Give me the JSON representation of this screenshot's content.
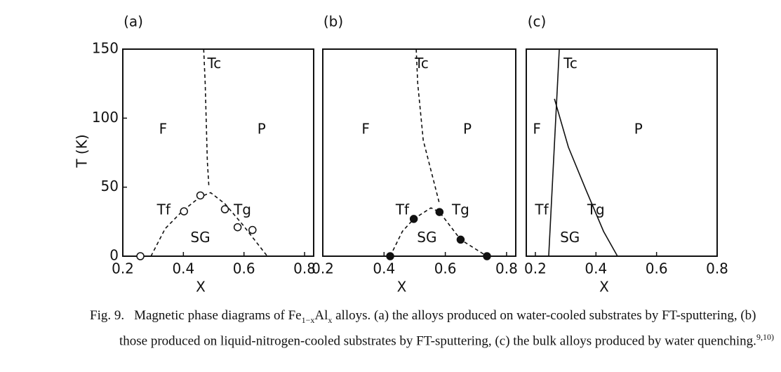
{
  "chart_data": [
    {
      "type": "line",
      "title": "(a)",
      "xlabel": "X",
      "ylabel": "T (K)",
      "xlim": [
        0.2,
        0.83
      ],
      "ylim": [
        0,
        150
      ],
      "xticks": [
        0.2,
        0.4,
        0.6,
        0.8
      ],
      "yticks": [
        0,
        50,
        100,
        150
      ],
      "series": [
        {
          "style": "dashed",
          "color": "#111",
          "x": [
            0.467,
            0.472,
            0.479,
            0.484
          ],
          "values": [
            150,
            125,
            69,
            51
          ]
        },
        {
          "style": "dashed",
          "color": "#111",
          "x": [
            0.293,
            0.34,
            0.398,
            0.456,
            0.49,
            0.537,
            0.595,
            0.677
          ],
          "values": [
            0,
            20,
            33,
            43,
            46,
            38,
            23,
            0
          ]
        },
        {
          "style": "none",
          "marker": "open",
          "color": "#111",
          "x": [
            0.258,
            0.402,
            0.456,
            0.537,
            0.579,
            0.628
          ],
          "values": [
            0,
            32.5,
            44,
            34,
            21,
            19
          ]
        }
      ],
      "annotations": [
        {
          "text": "F",
          "x": 0.333,
          "y": 91.5
        },
        {
          "text": "P",
          "x": 0.658,
          "y": 91.5
        },
        {
          "text": "SG",
          "x": 0.456,
          "y": 13
        },
        {
          "text": "Tc",
          "x": 0.502,
          "y": 139
        },
        {
          "text": "Tf",
          "x": 0.335,
          "y": 33
        },
        {
          "text": "Tg",
          "x": 0.595,
          "y": 33
        }
      ]
    },
    {
      "type": "line",
      "title": "(b)",
      "xlabel": "X",
      "xlim": [
        0.2,
        0.83
      ],
      "ylim": [
        0,
        150
      ],
      "xticks": [
        0.2,
        0.4,
        0.6,
        0.8
      ],
      "series": [
        {
          "style": "dashed",
          "color": "#111",
          "x": [
            0.505,
            0.51,
            0.528,
            0.581
          ],
          "values": [
            150,
            125,
            84,
            38
          ]
        },
        {
          "style": "dashed",
          "color": "#111",
          "x": [
            0.42,
            0.46,
            0.497,
            0.553,
            0.581,
            0.65,
            0.736
          ],
          "values": [
            0,
            18,
            27,
            35,
            32,
            12,
            0
          ]
        },
        {
          "style": "none",
          "marker": "filled",
          "color": "#111",
          "x": [
            0.42,
            0.497,
            0.581,
            0.65,
            0.736
          ],
          "values": [
            0,
            27,
            32,
            12,
            0
          ]
        }
      ],
      "annotations": [
        {
          "text": "F",
          "x": 0.34,
          "y": 91.5
        },
        {
          "text": "P",
          "x": 0.672,
          "y": 91.5
        },
        {
          "text": "SG",
          "x": 0.54,
          "y": 13
        },
        {
          "text": "Tc",
          "x": 0.523,
          "y": 139
        },
        {
          "text": "Tf",
          "x": 0.46,
          "y": 33
        },
        {
          "text": "Tg",
          "x": 0.65,
          "y": 33
        }
      ]
    },
    {
      "type": "line",
      "title": "(c)",
      "xlabel": "X",
      "xlim": [
        0.17,
        0.8
      ],
      "ylim": [
        0,
        150
      ],
      "xticks": [
        0.2,
        0.4,
        0.6,
        0.8
      ],
      "series": [
        {
          "style": "solid",
          "color": "#111",
          "x": [
            0.279,
            0.244
          ],
          "values": [
            150,
            0
          ]
        },
        {
          "style": "solid",
          "color": "#111",
          "x": [
            0.263,
            0.309,
            0.367,
            0.425,
            0.471
          ],
          "values": [
            114,
            79,
            48,
            18,
            0
          ]
        }
      ],
      "annotations": [
        {
          "text": "F",
          "x": 0.205,
          "y": 91.5
        },
        {
          "text": "P",
          "x": 0.54,
          "y": 91.5
        },
        {
          "text": "SG",
          "x": 0.314,
          "y": 13
        },
        {
          "text": "Tc",
          "x": 0.316,
          "y": 139
        },
        {
          "text": "Tf",
          "x": 0.221,
          "y": 33
        },
        {
          "text": "Tg",
          "x": 0.4,
          "y": 33
        }
      ]
    }
  ],
  "caption": {
    "label": "Fig. 9.",
    "parts": [
      {
        "text": "Magnetic phase diagrams of Fe",
        "style": "normal"
      },
      {
        "text": "1−x",
        "style": "sub"
      },
      {
        "text": "Al",
        "style": "normal"
      },
      {
        "text": "x",
        "style": "sub"
      },
      {
        "text": " alloys. (a) the alloys produced on water-cooled substrates by FT-sputtering, (b) those produced on liquid-nitrogen-cooled substrates by FT-sputtering, (c) the bulk alloys produced by water quenching.",
        "style": "normal"
      },
      {
        "text": "9,10)",
        "style": "sup"
      }
    ]
  }
}
